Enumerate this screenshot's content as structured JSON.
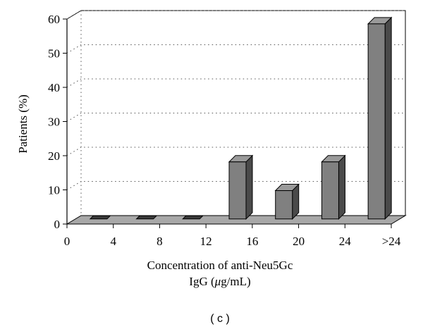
{
  "chart_data": {
    "type": "bar",
    "style": "3d-column",
    "xlabel_line1": "Concentration of anti-Neu5Gc",
    "xlabel_line2_prefix": "IgG (",
    "xlabel_line2_mu": "μ",
    "xlabel_line2_suffix": "g/mL)",
    "ylabel": "Patients (%)",
    "caption": "( c )",
    "x_tick_labels": [
      "0",
      "4",
      "8",
      "12",
      "16",
      "20",
      "24",
      ">24"
    ],
    "y_ticks": [
      0,
      10,
      20,
      30,
      40,
      50,
      60
    ],
    "ylim": [
      0,
      60
    ],
    "grid": "dotted-horizontal",
    "categories": [
      "0–4",
      "4–8",
      "8–12",
      "12–16",
      "16–20",
      "20–24",
      ">24"
    ],
    "values": [
      0,
      0,
      0,
      16.7,
      8.3,
      16.7,
      57.1
    ],
    "colors": {
      "bar_front": "#808080",
      "bar_side": "#4a4a4a",
      "bar_top": "#9a9a9a",
      "zero_bar": "#3a3a3a",
      "floor": "#a8a8a8",
      "grid": "#555555",
      "axis": "#000000"
    }
  }
}
